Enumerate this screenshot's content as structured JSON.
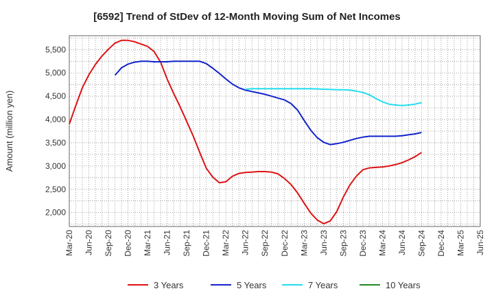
{
  "chart_data": {
    "type": "line",
    "title": "[6592]  Trend of StDev of 12-Month Moving Sum of Net Incomes",
    "ylabel": "Amount (million yen)",
    "xlabel": "",
    "ylim": [
      1700,
      5800
    ],
    "yticks": [
      2000,
      2500,
      3000,
      3500,
      4000,
      4500,
      5000,
      5500
    ],
    "ytick_labels": [
      "2,000",
      "2,500",
      "3,000",
      "3,500",
      "4,000",
      "4,500",
      "5,000",
      "5,500"
    ],
    "xticks": [
      "Mar-20",
      "Jun-20",
      "Sep-20",
      "Dec-20",
      "Mar-21",
      "Jun-21",
      "Sep-21",
      "Dec-21",
      "Mar-22",
      "Jun-22",
      "Sep-22",
      "Dec-22",
      "Mar-23",
      "Jun-23",
      "Sep-23",
      "Dec-23",
      "Mar-24",
      "Jun-24",
      "Sep-24",
      "Dec-24",
      "Mar-25",
      "Jun-25"
    ],
    "grid": true,
    "legend_position": "bottom",
    "series": [
      {
        "name": "3 Years",
        "color": "#dd1111",
        "values": [
          3900,
          4300,
          4680,
          4960,
          5180,
          5360,
          5510,
          5640,
          5700,
          5700,
          5670,
          5620,
          5570,
          5460,
          5230,
          4870,
          4560,
          4270,
          3960,
          3640,
          3290,
          2950,
          2760,
          2640,
          2660,
          2780,
          2840,
          2860,
          2870,
          2880,
          2880,
          2870,
          2830,
          2730,
          2600,
          2420,
          2200,
          1990,
          1840,
          1760,
          1820,
          2020,
          2330,
          2590,
          2780,
          2920,
          2960,
          2970,
          2980,
          3000,
          3030,
          3070,
          3130,
          3200,
          3290
        ]
      },
      {
        "name": "5 Years",
        "color": "#1122cc",
        "values": [
          null,
          null,
          null,
          null,
          null,
          null,
          null,
          4950,
          5110,
          5190,
          5230,
          5250,
          5250,
          5240,
          5240,
          5240,
          5250,
          5250,
          5250,
          5250,
          5250,
          5200,
          5100,
          4990,
          4870,
          4760,
          4680,
          4630,
          4600,
          4570,
          4540,
          4500,
          4460,
          4420,
          4340,
          4200,
          3980,
          3770,
          3610,
          3510,
          3460,
          3480,
          3510,
          3550,
          3590,
          3620,
          3640,
          3640,
          3640,
          3640,
          3640,
          3650,
          3670,
          3690,
          3720
        ]
      },
      {
        "name": "7 Years",
        "color": "#22ddee",
        "values": [
          null,
          null,
          null,
          null,
          null,
          null,
          null,
          null,
          null,
          null,
          null,
          null,
          null,
          null,
          null,
          null,
          null,
          null,
          null,
          null,
          null,
          null,
          null,
          null,
          null,
          null,
          null,
          4650,
          4660,
          4660,
          4660,
          4660,
          4660,
          4660,
          4660,
          4660,
          4660,
          4660,
          4655,
          4650,
          4645,
          4640,
          4640,
          4630,
          4610,
          4580,
          4530,
          4450,
          4380,
          4330,
          4310,
          4300,
          4310,
          4330,
          4360
        ]
      },
      {
        "name": "10 Years",
        "color": "#228822",
        "values": []
      }
    ]
  }
}
